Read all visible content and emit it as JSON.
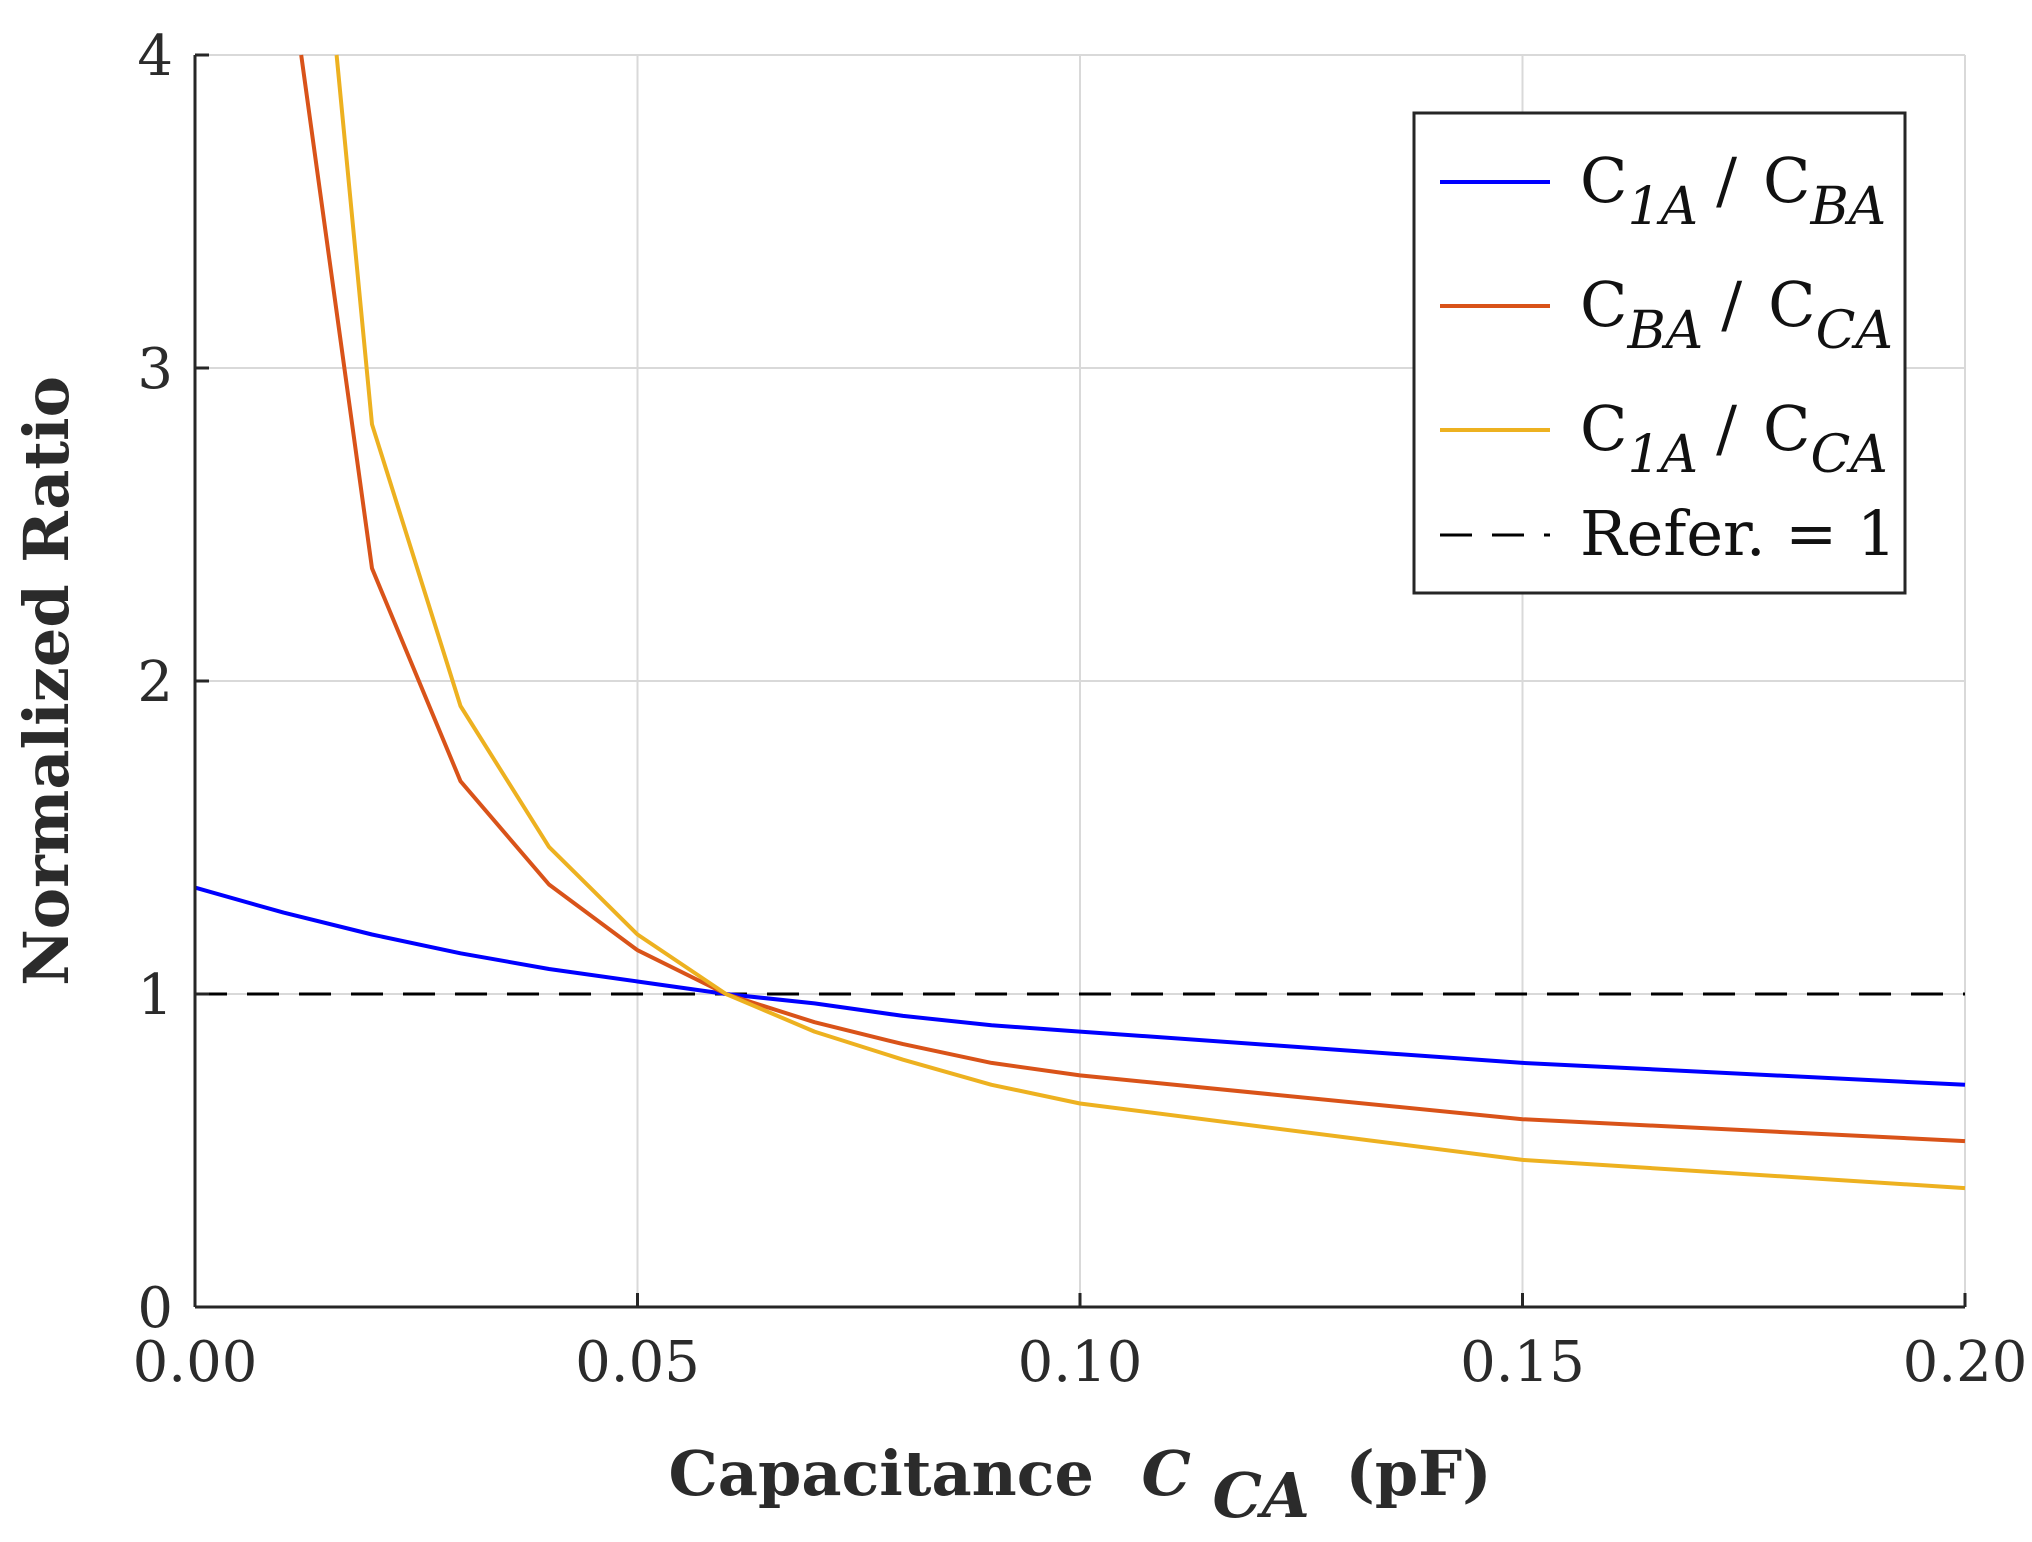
{
  "chart_data": {
    "type": "line",
    "title": "",
    "xlabel": {
      "prefix": "Capacitance",
      "symbol": "C",
      "subscript": "CA",
      "suffix": "(pF)"
    },
    "ylabel": "Normalized Ratio",
    "xlim": [
      0,
      0.2
    ],
    "ylim": [
      0,
      4
    ],
    "xticks": [
      0,
      0.05,
      0.1,
      0.15,
      0.2
    ],
    "xtick_labels": [
      "0.00",
      "0.05",
      "0.10",
      "0.15",
      "0.20"
    ],
    "yticks": [
      0,
      1,
      2,
      3,
      4
    ],
    "ytick_labels": [
      "0",
      "1",
      "2",
      "3",
      "4"
    ],
    "grid": true,
    "legend_position": "top-right",
    "series": [
      {
        "name": "C1A / CBA",
        "legend": {
          "num": "C",
          "num_sub": "1A",
          "den": "C",
          "den_sub": "BA"
        },
        "color": "#0000ff",
        "style": "solid",
        "x": [
          0,
          0.01,
          0.02,
          0.03,
          0.04,
          0.05,
          0.06,
          0.07,
          0.08,
          0.09,
          0.1,
          0.15,
          0.2
        ],
        "y": [
          1.34,
          1.26,
          1.19,
          1.13,
          1.08,
          1.04,
          1.0,
          0.97,
          0.93,
          0.9,
          0.88,
          0.78,
          0.71
        ]
      },
      {
        "name": "CBA / CCA",
        "legend": {
          "num": "C",
          "num_sub": "BA",
          "den": "C",
          "den_sub": "CA"
        },
        "color": "#d95319",
        "style": "solid",
        "x": [
          0.012,
          0.02,
          0.03,
          0.04,
          0.05,
          0.06,
          0.07,
          0.08,
          0.09,
          0.1,
          0.15,
          0.2
        ],
        "y": [
          4.0,
          2.36,
          1.68,
          1.35,
          1.14,
          1.0,
          0.91,
          0.84,
          0.78,
          0.74,
          0.6,
          0.53
        ]
      },
      {
        "name": "C1A / CCA",
        "legend": {
          "num": "C",
          "num_sub": "1A",
          "den": "C",
          "den_sub": "CA"
        },
        "color": "#edb120",
        "style": "solid",
        "x": [
          0.016,
          0.02,
          0.03,
          0.04,
          0.05,
          0.06,
          0.07,
          0.08,
          0.09,
          0.1,
          0.15,
          0.2
        ],
        "y": [
          4.0,
          2.82,
          1.92,
          1.47,
          1.19,
          1.0,
          0.88,
          0.79,
          0.71,
          0.65,
          0.47,
          0.38
        ]
      },
      {
        "name": "Refer. = 1",
        "legend": {
          "text": "Refer. = 1"
        },
        "color": "#000000",
        "style": "dashed",
        "x": [
          0,
          0.2
        ],
        "y": [
          1,
          1
        ]
      }
    ]
  }
}
